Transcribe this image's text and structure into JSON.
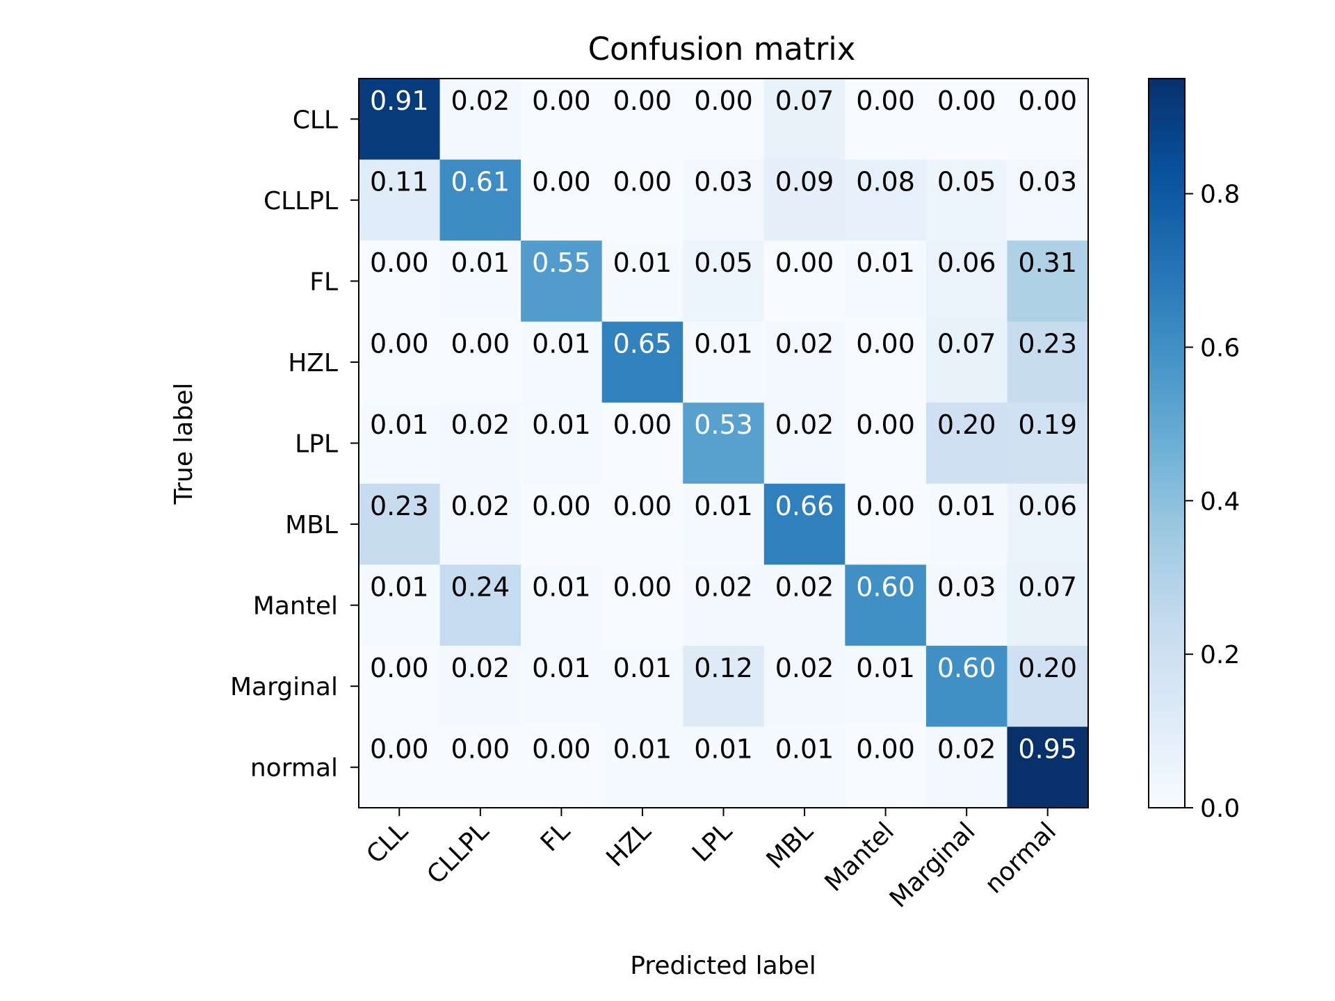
{
  "chart_data": {
    "type": "heatmap",
    "title": "Confusion matrix",
    "xlabel": "Predicted label",
    "ylabel": "True label",
    "x_categories": [
      "CLL",
      "CLLPL",
      "FL",
      "HZL",
      "LPL",
      "MBL",
      "Mantel",
      "Marginal",
      "normal"
    ],
    "y_categories": [
      "CLL",
      "CLLPL",
      "FL",
      "HZL",
      "LPL",
      "MBL",
      "Mantel",
      "Marginal",
      "normal"
    ],
    "values": [
      [
        "0.91",
        "0.02",
        "0.00",
        "0.00",
        "0.00",
        "0.07",
        "0.00",
        "0.00",
        "0.00"
      ],
      [
        "0.11",
        "0.61",
        "0.00",
        "0.00",
        "0.03",
        "0.09",
        "0.08",
        "0.05",
        "0.03"
      ],
      [
        "0.00",
        "0.01",
        "0.55",
        "0.01",
        "0.05",
        "0.00",
        "0.01",
        "0.06",
        "0.31"
      ],
      [
        "0.00",
        "0.00",
        "0.01",
        "0.65",
        "0.01",
        "0.02",
        "0.00",
        "0.07",
        "0.23"
      ],
      [
        "0.01",
        "0.02",
        "0.01",
        "0.00",
        "0.53",
        "0.02",
        "0.00",
        "0.20",
        "0.19"
      ],
      [
        "0.23",
        "0.02",
        "0.00",
        "0.00",
        "0.01",
        "0.66",
        "0.00",
        "0.01",
        "0.06"
      ],
      [
        "0.01",
        "0.24",
        "0.01",
        "0.00",
        "0.02",
        "0.02",
        "0.60",
        "0.03",
        "0.07"
      ],
      [
        "0.00",
        "0.02",
        "0.01",
        "0.01",
        "0.12",
        "0.02",
        "0.01",
        "0.60",
        "0.20"
      ],
      [
        "0.00",
        "0.00",
        "0.00",
        "0.01",
        "0.01",
        "0.01",
        "0.00",
        "0.02",
        "0.95"
      ]
    ],
    "colormap": "Blues",
    "colorbar": {
      "range": [
        0,
        0.95
      ],
      "ticks": [
        "0.0",
        "0.2",
        "0.4",
        "0.6",
        "0.8"
      ]
    },
    "grid": false,
    "x_tick_rotation_deg": 45,
    "text_color_threshold": 0.475,
    "colors": {
      "text_dark": "#000000",
      "text_light": "#ffffff",
      "axes": "#000000"
    }
  }
}
